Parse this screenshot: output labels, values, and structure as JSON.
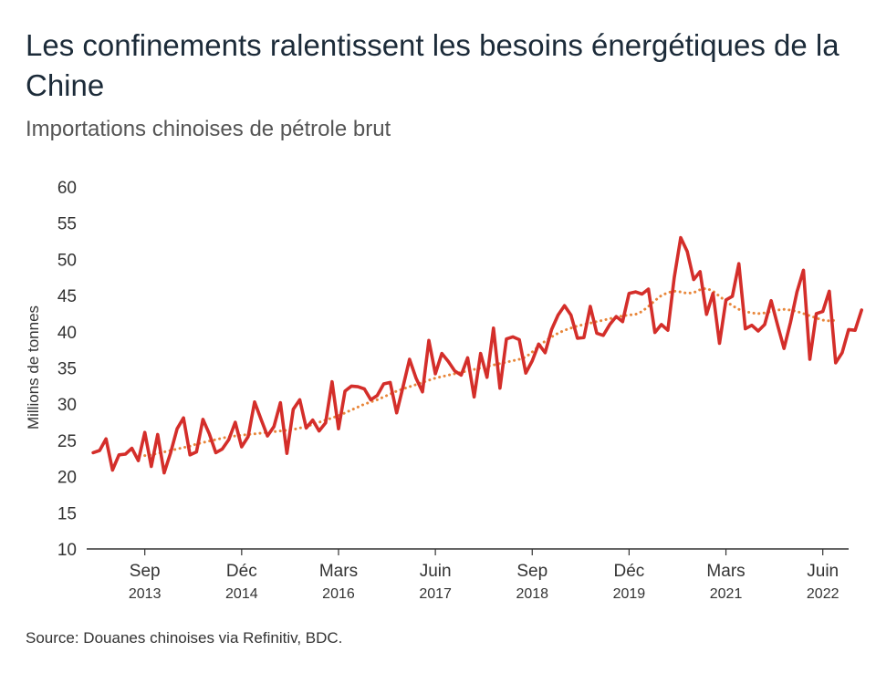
{
  "chart_data": {
    "type": "line",
    "title": "Les confinements ralentissent les besoins énergétiques de la Chine",
    "subtitle": "Importations chinoises de pétrole brut",
    "ylabel": "Millions de tonnes",
    "xlabel": "",
    "source": "Source: Douanes chinoises via Refinitiv, BDC.",
    "ylim": [
      10,
      60
    ],
    "yticks": [
      10,
      15,
      20,
      25,
      30,
      35,
      40,
      45,
      50,
      55,
      60
    ],
    "x_start": "2012-12",
    "x_end": "2022-10",
    "x_ticks": [
      {
        "month": "Sep",
        "year": "2013",
        "date": "2013-09"
      },
      {
        "month": "Déc",
        "year": "2014",
        "date": "2014-12"
      },
      {
        "month": "Mars",
        "year": "2016",
        "date": "2016-03"
      },
      {
        "month": "Juin",
        "year": "2017",
        "date": "2017-06"
      },
      {
        "month": "Sep",
        "year": "2018",
        "date": "2018-09"
      },
      {
        "month": "Déc",
        "year": "2019",
        "date": "2019-12"
      },
      {
        "month": "Mars",
        "year": "2021",
        "date": "2021-03"
      },
      {
        "month": "Juin",
        "year": "2022",
        "date": "2022-06"
      }
    ],
    "colors": {
      "monthly": "#d42e2a",
      "trend": "#e8863a",
      "axis": "#333333"
    },
    "series": [
      {
        "name": "",
        "style": "solid",
        "color": "#d42e2a",
        "start": "2013-01",
        "values": [
          23.3,
          23.6,
          25.2,
          20.9,
          23.0,
          23.1,
          23.9,
          22.2,
          26.1,
          21.4,
          25.8,
          20.5,
          23.3,
          26.6,
          28.1,
          23.0,
          23.4,
          27.9,
          25.9,
          23.3,
          23.8,
          25.1,
          27.5,
          24.1,
          25.5,
          30.3,
          27.9,
          25.6,
          26.9,
          30.2,
          23.2,
          29.3,
          30.6,
          26.7,
          27.8,
          26.3,
          27.4,
          33.1,
          26.6,
          31.8,
          32.5,
          32.4,
          32.1,
          30.6,
          31.2,
          32.8,
          33.0,
          28.8,
          32.4,
          36.2,
          33.6,
          31.7,
          38.8,
          34.2,
          37.0,
          35.9,
          34.6,
          34.0,
          36.4,
          31.0,
          37.0,
          33.7,
          40.5,
          32.2,
          39.0,
          39.3,
          38.9,
          34.3,
          36.0,
          38.3,
          37.1,
          40.3,
          42.3,
          43.6,
          42.3,
          39.1,
          39.2,
          43.5,
          39.8,
          39.5,
          41.0,
          42.1,
          41.4,
          45.3,
          45.5,
          45.2,
          45.9,
          39.9,
          41.0,
          40.2,
          47.5,
          53.0,
          51.1,
          47.2,
          48.3,
          42.4,
          45.3,
          38.4,
          44.4,
          44.9,
          49.4,
          40.4,
          40.9,
          40.1,
          41.0,
          44.3,
          40.9,
          37.7,
          41.3,
          45.5,
          48.5,
          36.2,
          42.5,
          42.8,
          45.6,
          35.7,
          37.1,
          40.3,
          40.2,
          43.0
        ]
      },
      {
        "name": "",
        "style": "dotted",
        "color": "#e8863a",
        "start": "2013-09",
        "values": [
          22.9,
          23.0,
          23.2,
          23.4,
          23.6,
          23.8,
          24.0,
          24.2,
          24.5,
          24.7,
          24.9,
          25.1,
          25.3,
          25.5,
          25.6,
          25.7,
          25.8,
          25.9,
          26.0,
          26.1,
          26.2,
          26.3,
          26.4,
          26.5,
          26.7,
          26.9,
          27.2,
          27.5,
          27.8,
          28.1,
          28.4,
          28.8,
          29.2,
          29.6,
          30.0,
          30.3,
          30.6,
          31.0,
          31.4,
          31.8,
          32.1,
          32.4,
          32.7,
          33.0,
          33.3,
          33.6,
          33.8,
          34.0,
          34.2,
          34.4,
          34.6,
          34.8,
          35.0,
          35.2,
          35.4,
          35.6,
          35.8,
          36.0,
          36.2,
          36.5,
          37.2,
          38.0,
          38.7,
          39.3,
          39.8,
          40.2,
          40.5,
          40.8,
          41.0,
          41.2,
          41.4,
          41.6,
          41.8,
          42.0,
          42.2,
          42.3,
          42.4,
          42.8,
          43.5,
          44.3,
          45.0,
          45.4,
          45.6,
          45.5,
          45.3,
          45.4,
          45.8,
          46.0,
          45.6,
          44.9,
          44.2,
          43.6,
          43.1,
          42.8,
          42.6,
          42.5,
          42.6,
          42.8,
          43.0,
          43.1,
          43.0,
          42.8,
          42.5,
          42.2,
          41.9,
          41.6,
          41.5,
          41.6
        ]
      }
    ]
  }
}
